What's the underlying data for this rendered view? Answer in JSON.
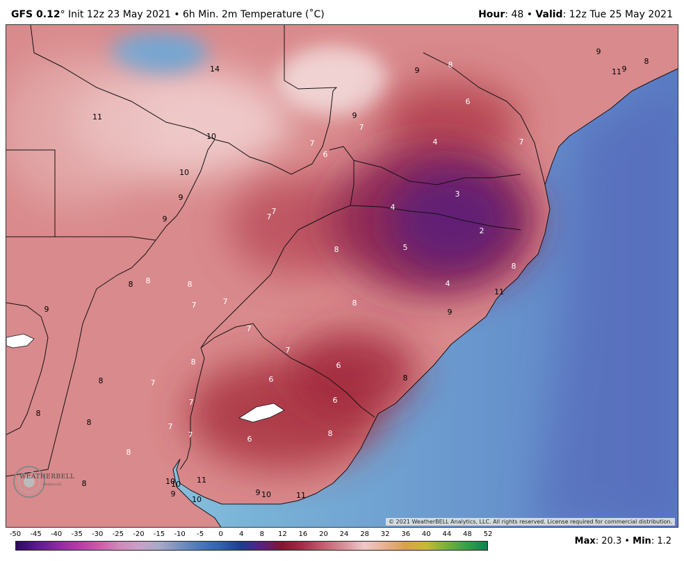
{
  "header": {
    "model": "GFS 0.12",
    "degree": "°",
    "desc": " Init 12z 23 May 2021 • 6h Min. 2m Temperature (˚C)",
    "hour_label": "Hour",
    "hour_value": ": 48 • ",
    "valid_label": "Valid",
    "valid_value": ": 12z Tue 25 May 2021"
  },
  "footer": {
    "copyright": "© 2021 WeatherBELL Analytics, LLC. All rights reserved. License required for commercial distribution.",
    "max_label": "Max",
    "max_value": ": 20.3 • ",
    "min_label": "Min",
    "min_value": ": 1.2"
  },
  "logo": {
    "name": "WEATHERBELL",
    "sub": "Analytics LLC",
    "icon": "weatherbell-logo"
  },
  "legend": {
    "ticks": [
      "-50",
      "-45",
      "-40",
      "-35",
      "-30",
      "-25",
      "-20",
      "-15",
      "-10",
      "-5",
      "0",
      "4",
      "8",
      "12",
      "16",
      "20",
      "24",
      "28",
      "32",
      "36",
      "40",
      "44",
      "48",
      "52"
    ],
    "colors": [
      "#2a0a5e",
      "#5a1a8a",
      "#8a2aa0",
      "#b03aa8",
      "#c85aa8",
      "#d088b8",
      "#c8a0c8",
      "#a8a8c8",
      "#7890c0",
      "#4878b8",
      "#3060a8",
      "#1e3c8c",
      "#5a2080",
      "#801830",
      "#a03048",
      "#c06070",
      "#d89098",
      "#eec8c8",
      "#e8b090",
      "#d8a050",
      "#c8b838",
      "#78b040",
      "#38a048",
      "#108050"
    ]
  },
  "colors": {
    "land_warm": "#d77f80",
    "land_cold": "#80205a",
    "ocean_near": "#a8dce8",
    "ocean_far": "#5a88c8"
  },
  "map_labels": [
    {
      "t": "14",
      "c": "#000"
    },
    {
      "t": "9",
      "c": "#000"
    },
    {
      "t": "8",
      "c": "#fff"
    },
    {
      "t": "9",
      "c": "#000"
    },
    {
      "t": "11",
      "c": "#000"
    },
    {
      "t": "9",
      "c": "#000"
    },
    {
      "t": "8",
      "c": "#000"
    },
    {
      "t": "11",
      "c": "#000"
    },
    {
      "t": "6",
      "c": "#fff"
    },
    {
      "t": "9",
      "c": "#000"
    },
    {
      "t": "7",
      "c": "#fff"
    },
    {
      "t": "10",
      "c": "#000"
    },
    {
      "t": "7",
      "c": "#fff"
    },
    {
      "t": "4",
      "c": "#fff"
    },
    {
      "t": "7",
      "c": "#fff"
    },
    {
      "t": "6",
      "c": "#fff"
    },
    {
      "t": "10",
      "c": "#000"
    },
    {
      "t": "9",
      "c": "#000"
    },
    {
      "t": "3",
      "c": "#fff"
    },
    {
      "t": "4",
      "c": "#fff"
    },
    {
      "t": "9",
      "c": "#000"
    },
    {
      "t": "7",
      "c": "#fff"
    },
    {
      "t": "7",
      "c": "#fff"
    },
    {
      "t": "2",
      "c": "#fff"
    },
    {
      "t": "8",
      "c": "#fff"
    },
    {
      "t": "5",
      "c": "#fff"
    },
    {
      "t": "8",
      "c": "#fff"
    },
    {
      "t": "8",
      "c": "#000"
    },
    {
      "t": "8",
      "c": "#fff"
    },
    {
      "t": "8",
      "c": "#fff"
    },
    {
      "t": "4",
      "c": "#fff"
    },
    {
      "t": "7",
      "c": "#fff"
    },
    {
      "t": "7",
      "c": "#fff"
    },
    {
      "t": "11",
      "c": "#000"
    },
    {
      "t": "8",
      "c": "#fff"
    },
    {
      "t": "9",
      "c": "#000"
    },
    {
      "t": "9",
      "c": "#000"
    },
    {
      "t": "7",
      "c": "#fff"
    },
    {
      "t": "7",
      "c": "#fff"
    },
    {
      "t": "6",
      "c": "#fff"
    },
    {
      "t": "8",
      "c": "#fff"
    },
    {
      "t": "6",
      "c": "#fff"
    },
    {
      "t": "8",
      "c": "#000"
    },
    {
      "t": "7",
      "c": "#fff"
    },
    {
      "t": "8",
      "c": "#000"
    },
    {
      "t": "6",
      "c": "#fff"
    },
    {
      "t": "7",
      "c": "#fff"
    },
    {
      "t": "8",
      "c": "#000"
    },
    {
      "t": "8",
      "c": "#000"
    },
    {
      "t": "7",
      "c": "#fff"
    },
    {
      "t": "7",
      "c": "#fff"
    },
    {
      "t": "6",
      "c": "#fff"
    },
    {
      "t": "8",
      "c": "#fff"
    },
    {
      "t": "8",
      "c": "#fff"
    },
    {
      "t": "10",
      "c": "#000"
    },
    {
      "t": "10",
      "c": "#000"
    },
    {
      "t": "11",
      "c": "#000"
    },
    {
      "t": "8",
      "c": "#000"
    },
    {
      "t": "9",
      "c": "#000"
    },
    {
      "t": "10",
      "c": "#000"
    },
    {
      "t": "9",
      "c": "#000"
    },
    {
      "t": "10",
      "c": "#000"
    },
    {
      "t": "11",
      "c": "#000"
    }
  ]
}
